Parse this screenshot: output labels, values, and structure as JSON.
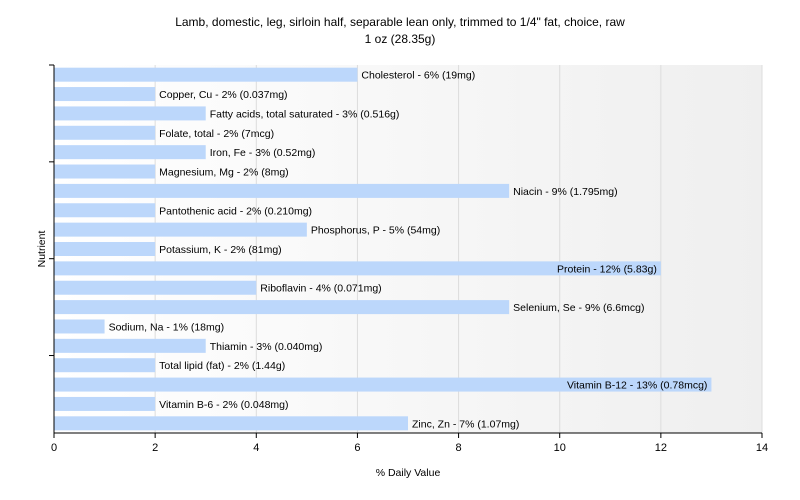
{
  "chart_data": {
    "type": "bar",
    "orientation": "horizontal",
    "title": "Lamb, domestic, leg, sirloin half, separable lean only, trimmed to 1/4\" fat, choice, raw",
    "subtitle": "1 oz (28.35g)",
    "xlabel": "% Daily Value",
    "ylabel": "Nutrient",
    "xlim": [
      0,
      14
    ],
    "xticks": [
      0,
      2,
      4,
      6,
      8,
      10,
      12,
      14
    ],
    "grid": true,
    "bar_color": "#bcd7fb",
    "categories": [
      "Cholesterol",
      "Copper, Cu",
      "Fatty acids, total saturated",
      "Folate, total",
      "Iron, Fe",
      "Magnesium, Mg",
      "Niacin",
      "Pantothenic acid",
      "Phosphorus, P",
      "Potassium, K",
      "Protein",
      "Riboflavin",
      "Selenium, Se",
      "Sodium, Na",
      "Thiamin",
      "Total lipid (fat)",
      "Vitamin B-12",
      "Vitamin B-6",
      "Zinc, Zn"
    ],
    "values": [
      6,
      2,
      3,
      2,
      3,
      2,
      9,
      2,
      5,
      2,
      12,
      4,
      9,
      1,
      3,
      2,
      13,
      2,
      7
    ],
    "labels": [
      "Cholesterol - 6% (19mg)",
      "Copper, Cu - 2% (0.037mg)",
      "Fatty acids, total saturated - 3% (0.516g)",
      "Folate, total - 2% (7mcg)",
      "Iron, Fe - 3% (0.52mg)",
      "Magnesium, Mg - 2% (8mg)",
      "Niacin - 9% (1.795mg)",
      "Pantothenic acid - 2% (0.210mg)",
      "Phosphorus, P - 5% (54mg)",
      "Potassium, K - 2% (81mg)",
      "Protein - 12% (5.83g)",
      "Riboflavin - 4% (0.071mg)",
      "Selenium, Se - 9% (6.6mcg)",
      "Sodium, Na - 1% (18mg)",
      "Thiamin - 3% (0.040mg)",
      "Total lipid (fat) - 2% (1.44g)",
      "Vitamin B-12 - 13% (0.78mcg)",
      "Vitamin B-6 - 2% (0.048mg)",
      "Zinc, Zn - 7% (1.07mg)"
    ]
  }
}
